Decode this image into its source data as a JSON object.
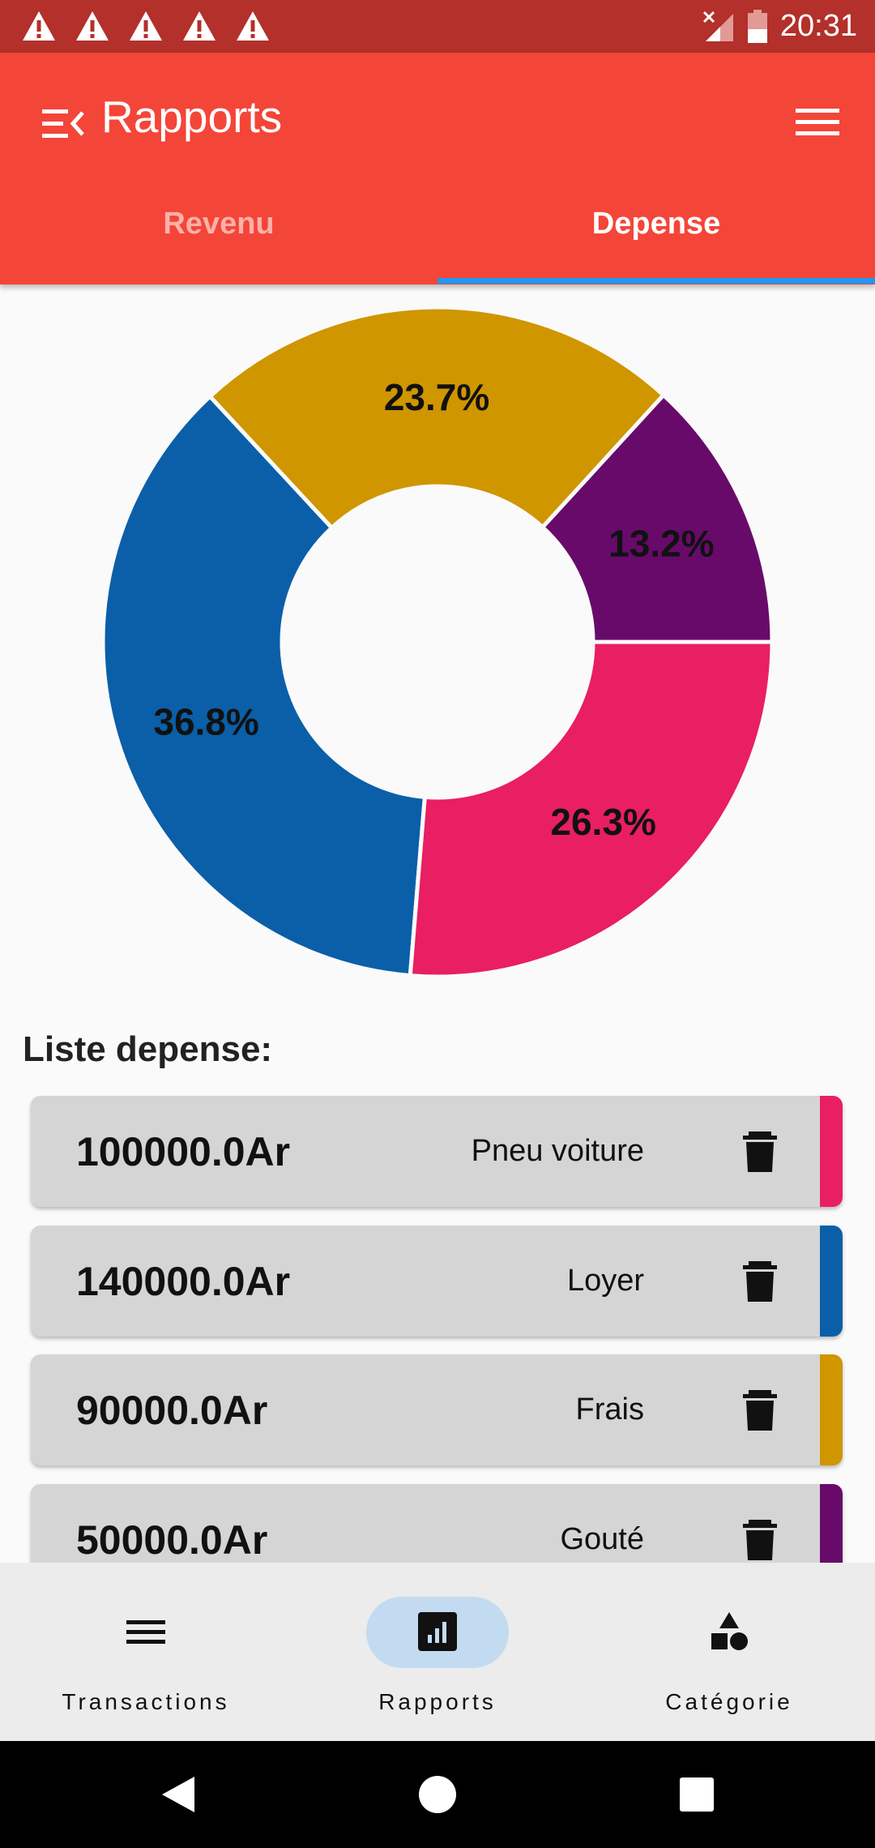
{
  "status_bar": {
    "time": "20:31",
    "warning_icons": [
      "warning-icon",
      "warning-icon",
      "warning-icon",
      "warning-icon",
      "warning-icon"
    ],
    "signal_icon": "signal-no-sim-icon",
    "battery_icon": "battery-low-icon"
  },
  "app_bar": {
    "title": "Rapports",
    "drawer_icon": "menu-open-icon",
    "menu_icon": "hamburger-icon"
  },
  "tabs": [
    {
      "label": "Revenu",
      "selected": false
    },
    {
      "label": "Depense",
      "selected": true
    }
  ],
  "colors": {
    "app_bar": "#f44539",
    "status_bar": "#b3302b",
    "tab_indicator": "#2196f3",
    "pink": "#e91e63",
    "blue": "#0a5fa8",
    "gold": "#cf9600",
    "purple": "#680a6a"
  },
  "chart_data": {
    "type": "pie",
    "donut": true,
    "slices": [
      {
        "label": "13.2%",
        "value": 13.2,
        "color": "#680a6a"
      },
      {
        "label": "23.7%",
        "value": 23.7,
        "color": "#cf9600"
      },
      {
        "label": "36.8%",
        "value": 36.8,
        "color": "#0a5fa8"
      },
      {
        "label": "26.3%",
        "value": 26.3,
        "color": "#e91e63"
      }
    ]
  },
  "list": {
    "title": "Liste depense:",
    "items": [
      {
        "amount": "100000.0Ar",
        "label": "Pneu voiture",
        "color": "#e91e63"
      },
      {
        "amount": "140000.0Ar",
        "label": "Loyer",
        "color": "#0a5fa8"
      },
      {
        "amount": "90000.0Ar",
        "label": "Frais",
        "color": "#cf9600"
      },
      {
        "amount": "50000.0Ar",
        "label": "Gouté",
        "color": "#680a6a"
      }
    ]
  },
  "bottom_nav": [
    {
      "label": "Transactions",
      "icon": "list-icon",
      "active": false
    },
    {
      "label": "Rapports",
      "icon": "bar-chart-icon",
      "active": true
    },
    {
      "label": "Catégorie",
      "icon": "shapes-icon",
      "active": false
    }
  ],
  "system_nav": [
    "back-icon",
    "home-icon",
    "recents-icon"
  ]
}
